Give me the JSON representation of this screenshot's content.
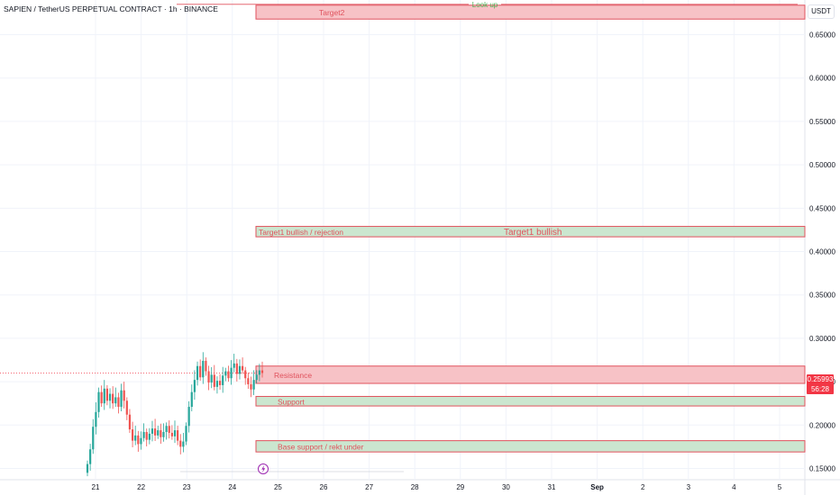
{
  "header": {
    "symbol_line": "SAPIEN / TetherUS PERPETUAL CONTRACT · 1h · BINANCE",
    "currency": "USDT"
  },
  "price_tag": {
    "price": "0.25993",
    "countdown": "56:28"
  },
  "colors": {
    "red_zone_fill": "#f7c2c6",
    "red_zone_border": "#e0525d",
    "green_zone_fill": "#cbe6cf",
    "green_zone_border": "#e0525d",
    "zone_text": "#e0525d",
    "up_candle": "#26a69a",
    "down_candle": "#ef5350",
    "lookup_line": "#e0525d",
    "lookup_text": "#4caf50"
  },
  "chart_data": {
    "type": "candlestick",
    "title": "",
    "x_ticks": [
      "21",
      "22",
      "23",
      "24",
      "25",
      "26",
      "27",
      "28",
      "29",
      "30",
      "31",
      "Sep",
      "2",
      "3",
      "4",
      "5"
    ],
    "y_ticks": [
      "0.15000",
      "0.20000",
      "0.25000",
      "0.30000",
      "0.35000",
      "0.40000",
      "0.45000",
      "0.50000",
      "0.55000",
      "0.60000",
      "0.65000"
    ],
    "ylim": [
      0.137,
      0.69
    ],
    "grid": true,
    "current_price": 0.25993,
    "lookup_line": {
      "label": "Look up",
      "price": 0.685
    },
    "zones": [
      {
        "label": "Target2",
        "low": 0.668,
        "high": 0.684,
        "kind": "red"
      },
      {
        "label": "Target1 bullish / rejection",
        "low": 0.417,
        "high": 0.429,
        "kind": "green"
      },
      {
        "label": "Target1 bullish",
        "low": 0.417,
        "high": 0.429,
        "kind": "green"
      },
      {
        "label": "Resistance",
        "low": 0.248,
        "high": 0.268,
        "kind": "red"
      },
      {
        "label": "Support",
        "low": 0.222,
        "high": 0.233,
        "kind": "green"
      },
      {
        "label": "Base support / rekt under",
        "low": 0.169,
        "high": 0.182,
        "kind": "green"
      }
    ],
    "candles_close": [
      0.155,
      0.172,
      0.198,
      0.215,
      0.238,
      0.225,
      0.242,
      0.228,
      0.236,
      0.225,
      0.232,
      0.221,
      0.24,
      0.228,
      0.212,
      0.195,
      0.182,
      0.188,
      0.178,
      0.185,
      0.192,
      0.183,
      0.19,
      0.196,
      0.188,
      0.194,
      0.186,
      0.192,
      0.199,
      0.191,
      0.187,
      0.194,
      0.182,
      0.175,
      0.181,
      0.199,
      0.221,
      0.238,
      0.252,
      0.268,
      0.255,
      0.274,
      0.262,
      0.249,
      0.258,
      0.244,
      0.251,
      0.246,
      0.257,
      0.262,
      0.254,
      0.266,
      0.271,
      0.259,
      0.268,
      0.263,
      0.254,
      0.247,
      0.241,
      0.252,
      0.258,
      0.263,
      0.26
    ]
  }
}
